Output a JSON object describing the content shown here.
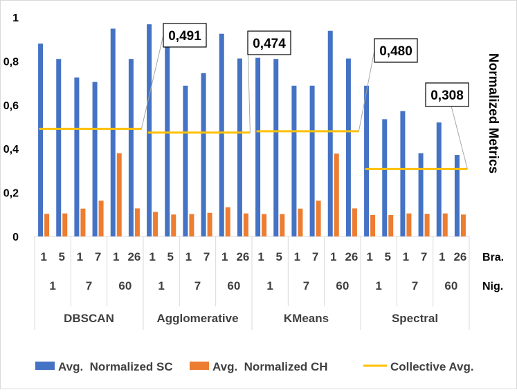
{
  "chart_data": {
    "type": "bar",
    "ylim": [
      0,
      1
    ],
    "y_ticks": [
      "0",
      "0,2",
      "0,4",
      "0,6",
      "0,8",
      "1"
    ],
    "ylabel": "Normalized Metrics",
    "grid": false,
    "legend_position": "bottom",
    "x_level_labels": [
      "Bra.",
      "Nig."
    ],
    "groups": [
      {
        "name": "DBSCAN",
        "subgroups": [
          {
            "label": "1",
            "categories": [
              "1",
              "5"
            ]
          },
          {
            "label": "7",
            "categories": [
              "1",
              "7"
            ]
          },
          {
            "label": "60",
            "categories": [
              "1",
              "26"
            ]
          }
        ],
        "collective_avg": 0.491,
        "annotation": "0,491"
      },
      {
        "name": "Agglomerative",
        "subgroups": [
          {
            "label": "1",
            "categories": [
              "1",
              "5"
            ]
          },
          {
            "label": "7",
            "categories": [
              "1",
              "7"
            ]
          },
          {
            "label": "60",
            "categories": [
              "1",
              "26"
            ]
          }
        ],
        "collective_avg": 0.474,
        "annotation": "0,474"
      },
      {
        "name": "KMeans",
        "subgroups": [
          {
            "label": "1",
            "categories": [
              "1",
              "5"
            ]
          },
          {
            "label": "7",
            "categories": [
              "1",
              "7"
            ]
          },
          {
            "label": "60",
            "categories": [
              "1",
              "26"
            ]
          }
        ],
        "collective_avg": 0.48,
        "annotation": "0,480"
      },
      {
        "name": "Spectral",
        "subgroups": [
          {
            "label": "1",
            "categories": [
              "1",
              "5"
            ]
          },
          {
            "label": "7",
            "categories": [
              "1",
              "7"
            ]
          },
          {
            "label": "60",
            "categories": [
              "1",
              "26"
            ]
          }
        ],
        "collective_avg": 0.308,
        "annotation": "0,308"
      }
    ],
    "series": [
      {
        "name": "Avg.  Normalized SC",
        "color": "#4472C4",
        "values": [
          0.88,
          0.81,
          0.725,
          0.705,
          0.948,
          0.81,
          0.968,
          0.882,
          0.688,
          0.745,
          0.925,
          0.812,
          0.815,
          0.81,
          0.688,
          0.688,
          0.938,
          0.812,
          0.688,
          0.535,
          0.572,
          0.38,
          0.52,
          0.372
        ]
      },
      {
        "name": "Avg.  Normalized CH",
        "color": "#ED7D31",
        "values": [
          0.103,
          0.105,
          0.127,
          0.163,
          0.38,
          0.128,
          0.112,
          0.1,
          0.102,
          0.108,
          0.133,
          0.105,
          0.102,
          0.102,
          0.127,
          0.163,
          0.378,
          0.128,
          0.098,
          0.098,
          0.105,
          0.103,
          0.105,
          0.1
        ]
      },
      {
        "name": "Collective Avg.",
        "color": "#FFC000",
        "type": "line"
      }
    ]
  }
}
